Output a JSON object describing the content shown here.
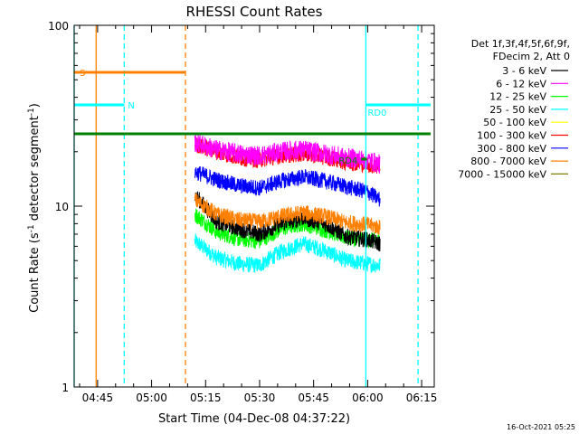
{
  "chart_data": {
    "type": "line",
    "title": "RHESSI Count Rates",
    "xlabel": "Start Time (04-Dec-08 04:37:22)",
    "ylabel_main": "Count Rate (s",
    "ylabel_exp1": "-1",
    "ylabel_mid": " detector segment",
    "ylabel_exp2": "-1",
    "ylabel_end": ")",
    "timestamp": "16-Oct-2021 05:25",
    "x_range_minutes": [
      38.5,
      100.5
    ],
    "x_ticks": [
      {
        "m": 45,
        "label": "04:45"
      },
      {
        "m": 60,
        "label": "05:00"
      },
      {
        "m": 75,
        "label": "05:15"
      },
      {
        "m": 90,
        "label": "05:30"
      },
      {
        "m": 105,
        "label": "05:45"
      },
      {
        "m": 120,
        "label": "06:00"
      },
      {
        "m": 135,
        "label": "06:15"
      }
    ],
    "y_scale": "log",
    "ylim": [
      1,
      100
    ],
    "y_ticks": [
      {
        "v": 1,
        "label": "1"
      },
      {
        "v": 10,
        "label": "10"
      },
      {
        "v": 100,
        "label": "100"
      }
    ],
    "legend_header": [
      "Det 1f,3f,4f,5f,6f,9f,",
      "FDecim 2, Att 0"
    ],
    "series": [
      {
        "name": "3 - 6 keV",
        "color": "#000000",
        "x": [
          72,
          78,
          84,
          90,
          96,
          102,
          108,
          114,
          120,
          123.5
        ],
        "y": [
          11.5,
          8.2,
          7.5,
          7.0,
          8.0,
          8.6,
          8.0,
          6.8,
          6.5,
          6.2
        ]
      },
      {
        "name": "6 - 12 keV",
        "color": "#ff00ff",
        "x": [
          72,
          78,
          84,
          90,
          96,
          102,
          108,
          114,
          120,
          123.5
        ],
        "y": [
          22.5,
          20.5,
          19.5,
          19.0,
          20.0,
          20.5,
          19.5,
          18.5,
          18.0,
          17.0
        ]
      },
      {
        "name": "12 - 25 keV",
        "color": "#00ff00",
        "x": [
          72,
          78,
          84,
          90,
          96,
          102,
          108,
          114,
          120,
          123.5
        ],
        "y": [
          9.0,
          7.2,
          6.6,
          6.4,
          7.5,
          8.0,
          7.4,
          6.7,
          6.5,
          6.4
        ]
      },
      {
        "name": "25 - 50 keV",
        "color": "#00ffff",
        "x": [
          72,
          78,
          84,
          90,
          96,
          102,
          108,
          114,
          120,
          123.5
        ],
        "y": [
          6.4,
          5.2,
          4.8,
          4.7,
          5.6,
          6.2,
          5.7,
          5.0,
          4.8,
          4.7
        ]
      },
      {
        "name": "50 - 100 keV",
        "color": "#ffff00",
        "x": [],
        "y": []
      },
      {
        "name": "100 - 300 keV",
        "color": "#ff0000",
        "x": [
          72,
          78,
          84,
          90,
          96,
          102,
          108,
          114,
          120,
          123.5
        ],
        "y": [
          22.0,
          20.0,
          18.5,
          18.0,
          19.0,
          19.5,
          18.7,
          17.5,
          17.0,
          16.3
        ]
      },
      {
        "name": "300 - 800 keV",
        "color": "#0000ff",
        "x": [
          72,
          78,
          84,
          90,
          96,
          102,
          108,
          114,
          120,
          123.5
        ],
        "y": [
          15.5,
          14.0,
          13.0,
          12.6,
          13.8,
          14.5,
          13.8,
          12.8,
          12.0,
          10.8
        ]
      },
      {
        "name": "800 - 7000 keV",
        "color": "#ff8000",
        "x": [
          72,
          78,
          84,
          90,
          96,
          102,
          108,
          114,
          120,
          123.5
        ],
        "y": [
          10.8,
          9.0,
          8.4,
          8.2,
          8.8,
          9.2,
          8.8,
          8.1,
          7.9,
          7.6
        ]
      },
      {
        "name": "7000 - 15000 keV",
        "color": "#808000",
        "x": [],
        "y": []
      }
    ],
    "annotations": {
      "vlines": [
        {
          "m": 38.5,
          "style": "solid",
          "color": "#00ffff"
        },
        {
          "m": 44.6,
          "style": "solid",
          "color": "#ff8000"
        },
        {
          "m": 52.4,
          "style": "dashed",
          "color": "#00ffff"
        },
        {
          "m": 69.4,
          "style": "dashed",
          "color": "#ff8000"
        },
        {
          "m": 119.5,
          "style": "solid",
          "color": "#00ffff"
        },
        {
          "m": 134.0,
          "style": "dashed",
          "color": "#00ffff"
        }
      ],
      "bars": [
        {
          "label": "S",
          "color": "#ff8000",
          "x": [
            38.5,
            69.4
          ],
          "y": 87
        },
        {
          "label": "N",
          "color": "#00ffff",
          "x": [
            38.5,
            52.4
          ],
          "y": 78
        },
        {
          "label": "",
          "color": "#008000",
          "x": [
            38.5,
            137.5
          ],
          "y": 70
        },
        {
          "label": "RD4",
          "color": "#008000",
          "x": [
            118.2,
            119.8
          ],
          "y": 63
        },
        {
          "label": "RD0",
          "color": "#00ffff",
          "x": [
            119.5,
            137.5
          ],
          "y": 78
        }
      ]
    }
  }
}
